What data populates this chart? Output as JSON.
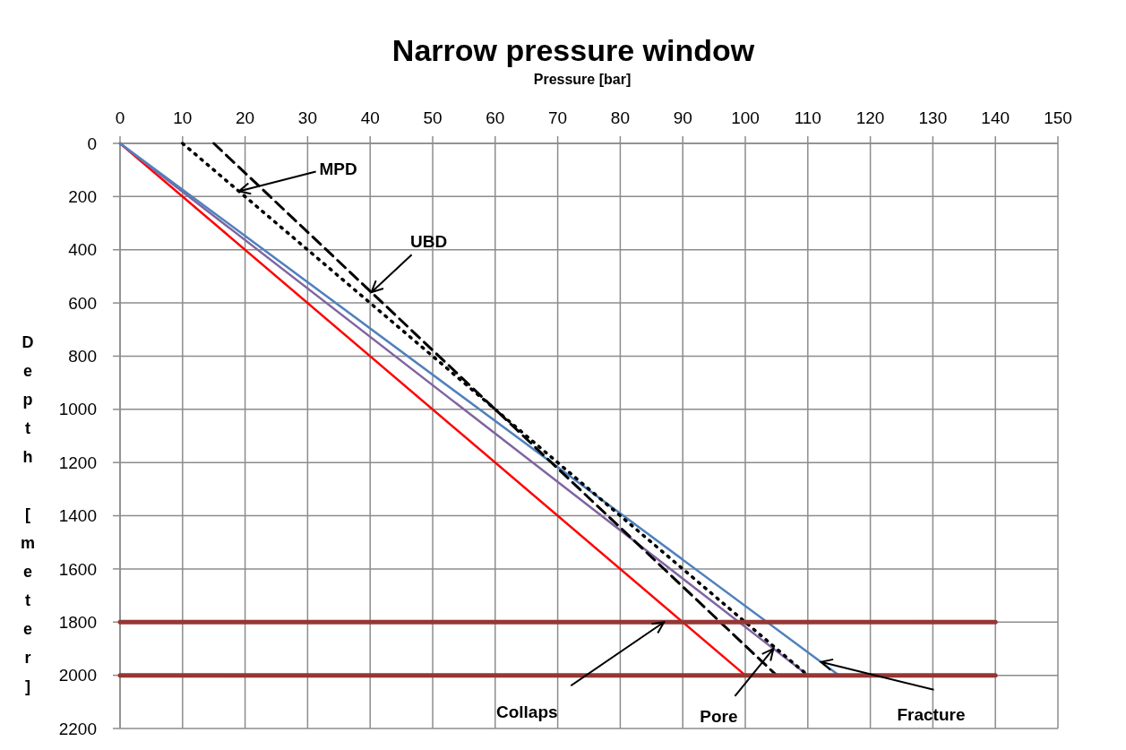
{
  "chart_data": {
    "type": "line",
    "title": "Narrow pressure window",
    "xlabel": "Pressure [bar]",
    "ylabel": "Depth [meter]",
    "xlim": [
      0,
      150
    ],
    "xticks": [
      0,
      10,
      20,
      30,
      40,
      50,
      60,
      70,
      80,
      90,
      100,
      110,
      120,
      130,
      140,
      150
    ],
    "ylim": [
      2200,
      0
    ],
    "yticks": [
      0,
      200,
      400,
      600,
      800,
      1000,
      1200,
      1400,
      1600,
      1800,
      2000,
      2200
    ],
    "grid": true,
    "series": [
      {
        "color": "#ff0000",
        "x": [
          0,
          100
        ],
        "values": [
          0,
          2000
        ],
        "line_style": "solid"
      },
      {
        "color": "#8064a2",
        "x": [
          0,
          110
        ],
        "values": [
          0,
          2000
        ],
        "line_style": "solid"
      },
      {
        "color": "#4f81bd",
        "x": [
          0,
          115
        ],
        "values": [
          0,
          2000
        ],
        "line_style": "solid"
      },
      {
        "color": "#000000",
        "x": [
          10,
          110
        ],
        "values": [
          0,
          2000
        ],
        "line_style": "dotted"
      },
      {
        "color": "#000000",
        "x": [
          15,
          105
        ],
        "values": [
          0,
          2000
        ],
        "line_style": "dashed"
      },
      {
        "color": "#953735",
        "x": [
          0,
          140
        ],
        "values": [
          1800,
          1800
        ],
        "line_style": "solid"
      },
      {
        "color": "#953735",
        "x": [
          0,
          140
        ],
        "values": [
          2000,
          2000
        ],
        "line_style": "solid"
      }
    ],
    "annotations": [
      {
        "text": "MPD",
        "x": 19,
        "y": 180
      },
      {
        "text": "UBD",
        "x": 40.2,
        "y": 560
      },
      {
        "text": "Collaps",
        "x": 87,
        "y": 1800
      },
      {
        "text": "Pore",
        "x": 104.5,
        "y": 1900
      },
      {
        "text": "Fracture",
        "x": 112.1,
        "y": 1950
      }
    ]
  }
}
